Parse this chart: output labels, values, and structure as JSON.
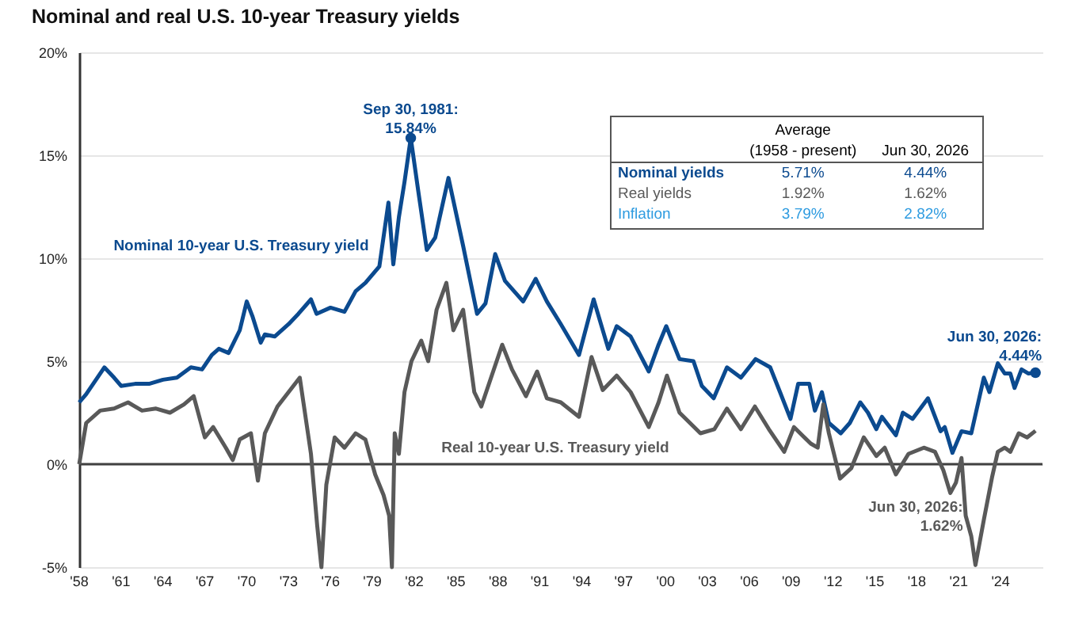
{
  "chart_data": {
    "type": "line",
    "title": "Nominal and real U.S. 10-year Treasury yields",
    "xlim": [
      1958,
      2027
    ],
    "xticks": [
      {
        "value": 1958,
        "label": "'58"
      },
      {
        "value": 1961,
        "label": "'61"
      },
      {
        "value": 1964,
        "label": "'64"
      },
      {
        "value": 1967,
        "label": "'67"
      },
      {
        "value": 1970,
        "label": "'70"
      },
      {
        "value": 1973,
        "label": "'73"
      },
      {
        "value": 1976,
        "label": "'76"
      },
      {
        "value": 1979,
        "label": "'79"
      },
      {
        "value": 1982,
        "label": "'82"
      },
      {
        "value": 1985,
        "label": "'85"
      },
      {
        "value": 1988,
        "label": "'88"
      },
      {
        "value": 1991,
        "label": "'91"
      },
      {
        "value": 1994,
        "label": "'94"
      },
      {
        "value": 1997,
        "label": "'97"
      },
      {
        "value": 2000,
        "label": "'00"
      },
      {
        "value": 2003,
        "label": "'03"
      },
      {
        "value": 2006,
        "label": "'06"
      },
      {
        "value": 2009,
        "label": "'09"
      },
      {
        "value": 2012,
        "label": "'12"
      },
      {
        "value": 2015,
        "label": "'15"
      },
      {
        "value": 2018,
        "label": "'18"
      },
      {
        "value": 2021,
        "label": "'21"
      },
      {
        "value": 2024,
        "label": "'24"
      }
    ],
    "ylim": [
      -5,
      20
    ],
    "yticks": [
      {
        "value": -5,
        "label": "-5%"
      },
      {
        "value": 0,
        "label": "0%"
      },
      {
        "value": 5,
        "label": "5%"
      },
      {
        "value": 10,
        "label": "10%"
      },
      {
        "value": 15,
        "label": "15%"
      },
      {
        "value": 20,
        "label": "20%"
      }
    ],
    "grid": "y",
    "legend": false,
    "marker": "none",
    "line_style": "solid",
    "ref_lines": [
      {
        "axis": "y",
        "value": 0,
        "color": "#404040"
      }
    ],
    "series": [
      {
        "name": "Nominal 10-year U.S.  Treasury yield",
        "color": "#0b4a8f",
        "x": [
          1958,
          1958.5,
          1959.8,
          1960.5,
          1961,
          1962,
          1963,
          1964,
          1965,
          1966,
          1966.8,
          1967.5,
          1968,
          1968.7,
          1969.5,
          1970.0,
          1970.4,
          1971.0,
          1971.3,
          1972,
          1973,
          1973.7,
          1974.6,
          1975,
          1976,
          1977,
          1977.8,
          1978.5,
          1979.5,
          1980.15,
          1980.5,
          1980.9,
          1981.3,
          1981.75,
          1982.3,
          1982.9,
          1983.5,
          1984.45,
          1985.5,
          1986.5,
          1987.1,
          1987.8,
          1988.5,
          1989.8,
          1990.7,
          1991.5,
          1992.5,
          1993.8,
          1994.85,
          1995.9,
          1996.5,
          1997.5,
          1998.8,
          1999.5,
          2000.05,
          2001.0,
          2002.0,
          2002.6,
          2003.45,
          2004.4,
          2005.4,
          2006.45,
          2007.5,
          2008.2,
          2008.95,
          2009.5,
          2010.3,
          2010.7,
          2011.2,
          2011.7,
          2012.55,
          2013.2,
          2013.95,
          2014.5,
          2015.1,
          2015.5,
          2016.5,
          2017.0,
          2017.7,
          2018.8,
          2019.7,
          2020.0,
          2020.55,
          2021.2,
          2021.9,
          2022.8,
          2023.2,
          2023.8,
          2024.3,
          2024.7,
          2025.0,
          2025.5,
          2026.0,
          2026.5
        ],
        "values": [
          3.0,
          3.4,
          4.7,
          4.2,
          3.8,
          3.9,
          3.9,
          4.1,
          4.2,
          4.7,
          4.6,
          5.3,
          5.6,
          5.4,
          6.5,
          7.9,
          7.2,
          5.9,
          6.3,
          6.2,
          6.8,
          7.3,
          8.0,
          7.3,
          7.6,
          7.4,
          8.4,
          8.8,
          9.6,
          12.7,
          9.7,
          12.0,
          13.7,
          15.84,
          13.2,
          10.4,
          11.0,
          13.9,
          10.6,
          7.3,
          7.8,
          10.2,
          8.9,
          7.9,
          9.0,
          7.9,
          6.8,
          5.3,
          8.0,
          5.6,
          6.7,
          6.2,
          4.5,
          5.8,
          6.7,
          5.1,
          5.0,
          3.8,
          3.2,
          4.7,
          4.2,
          5.1,
          4.7,
          3.5,
          2.2,
          3.9,
          3.9,
          2.6,
          3.5,
          2.0,
          1.5,
          2.0,
          3.0,
          2.5,
          1.7,
          2.3,
          1.4,
          2.5,
          2.2,
          3.2,
          1.6,
          1.8,
          0.55,
          1.6,
          1.5,
          4.2,
          3.5,
          4.9,
          4.4,
          4.4,
          3.7,
          4.6,
          4.4,
          4.44
        ]
      },
      {
        "name": "Real 10-year U.S.  Treasury yield",
        "color": "#595959",
        "x": [
          1958,
          1958.5,
          1959.5,
          1960.5,
          1961.5,
          1962.5,
          1963.5,
          1964.5,
          1965.5,
          1966.2,
          1967,
          1967.6,
          1968.5,
          1969,
          1969.5,
          1970.3,
          1970.8,
          1971.3,
          1972.2,
          1973.0,
          1973.8,
          1974.6,
          1975.05,
          1975.35,
          1975.7,
          1976.3,
          1977,
          1977.8,
          1978.5,
          1979.2,
          1979.8,
          1980.2,
          1980.4,
          1980.6,
          1980.9,
          1981.3,
          1981.8,
          1982.5,
          1983,
          1983.6,
          1984.3,
          1984.8,
          1985.5,
          1986.3,
          1986.8,
          1987.8,
          1988.3,
          1989,
          1990,
          1990.8,
          1991.5,
          1992.5,
          1993.8,
          1994.7,
          1995.5,
          1996.5,
          1997.5,
          1998.8,
          1999.5,
          2000.1,
          2001,
          2002.5,
          2003.5,
          2004.4,
          2005.4,
          2006.4,
          2007.4,
          2008.5,
          2009.2,
          2010.4,
          2010.9,
          2011.3,
          2011.7,
          2012.5,
          2013.3,
          2014.2,
          2015.1,
          2015.7,
          2016.5,
          2017.4,
          2018.5,
          2019.3,
          2019.9,
          2020.4,
          2020.8,
          2021.2,
          2021.5,
          2021.9,
          2022.2,
          2022.8,
          2023.4,
          2023.8,
          2024.3,
          2024.7,
          2025.3,
          2025.9,
          2026.5
        ],
        "values": [
          0.0,
          2.0,
          2.6,
          2.7,
          3.0,
          2.6,
          2.7,
          2.5,
          2.9,
          3.3,
          1.3,
          1.8,
          0.8,
          0.2,
          1.2,
          1.5,
          -0.8,
          1.5,
          2.8,
          3.5,
          4.2,
          0.5,
          -3.0,
          -5.0,
          -1.0,
          1.3,
          0.8,
          1.5,
          1.2,
          -0.5,
          -1.5,
          -2.5,
          -5.0,
          1.5,
          0.5,
          3.5,
          5.0,
          6.0,
          5.0,
          7.5,
          8.8,
          6.5,
          7.5,
          3.5,
          2.8,
          4.8,
          5.8,
          4.6,
          3.3,
          4.5,
          3.2,
          3.0,
          2.3,
          5.2,
          3.6,
          4.3,
          3.5,
          1.8,
          3.0,
          4.3,
          2.5,
          1.5,
          1.7,
          2.7,
          1.7,
          2.8,
          1.7,
          0.6,
          1.8,
          1.0,
          0.8,
          2.9,
          1.5,
          -0.7,
          -0.2,
          1.3,
          0.4,
          0.8,
          -0.5,
          0.5,
          0.8,
          0.6,
          -0.3,
          -1.4,
          -0.9,
          0.3,
          -2.5,
          -3.5,
          -4.9,
          -2.7,
          -0.6,
          0.6,
          0.8,
          0.6,
          1.5,
          1.3,
          1.62
        ]
      }
    ],
    "annotations": [
      {
        "text": "Sep 30, 1981:\n15.84%",
        "x": 1981.75,
        "y": 15.84
      },
      {
        "text": "Jun 30, 2026:\n4.44%",
        "x": 2026.5,
        "y": 4.44
      },
      "Jun 30, 2026:\n1.62%",
      "Average",
      "(1958 - present)",
      "Jun 30, 2026",
      "Nominal yields",
      "5.71%",
      "4.44%",
      "Real yields",
      "1.92%",
      "1.62%",
      "Inflation",
      "3.79%",
      "2.82%"
    ]
  }
}
